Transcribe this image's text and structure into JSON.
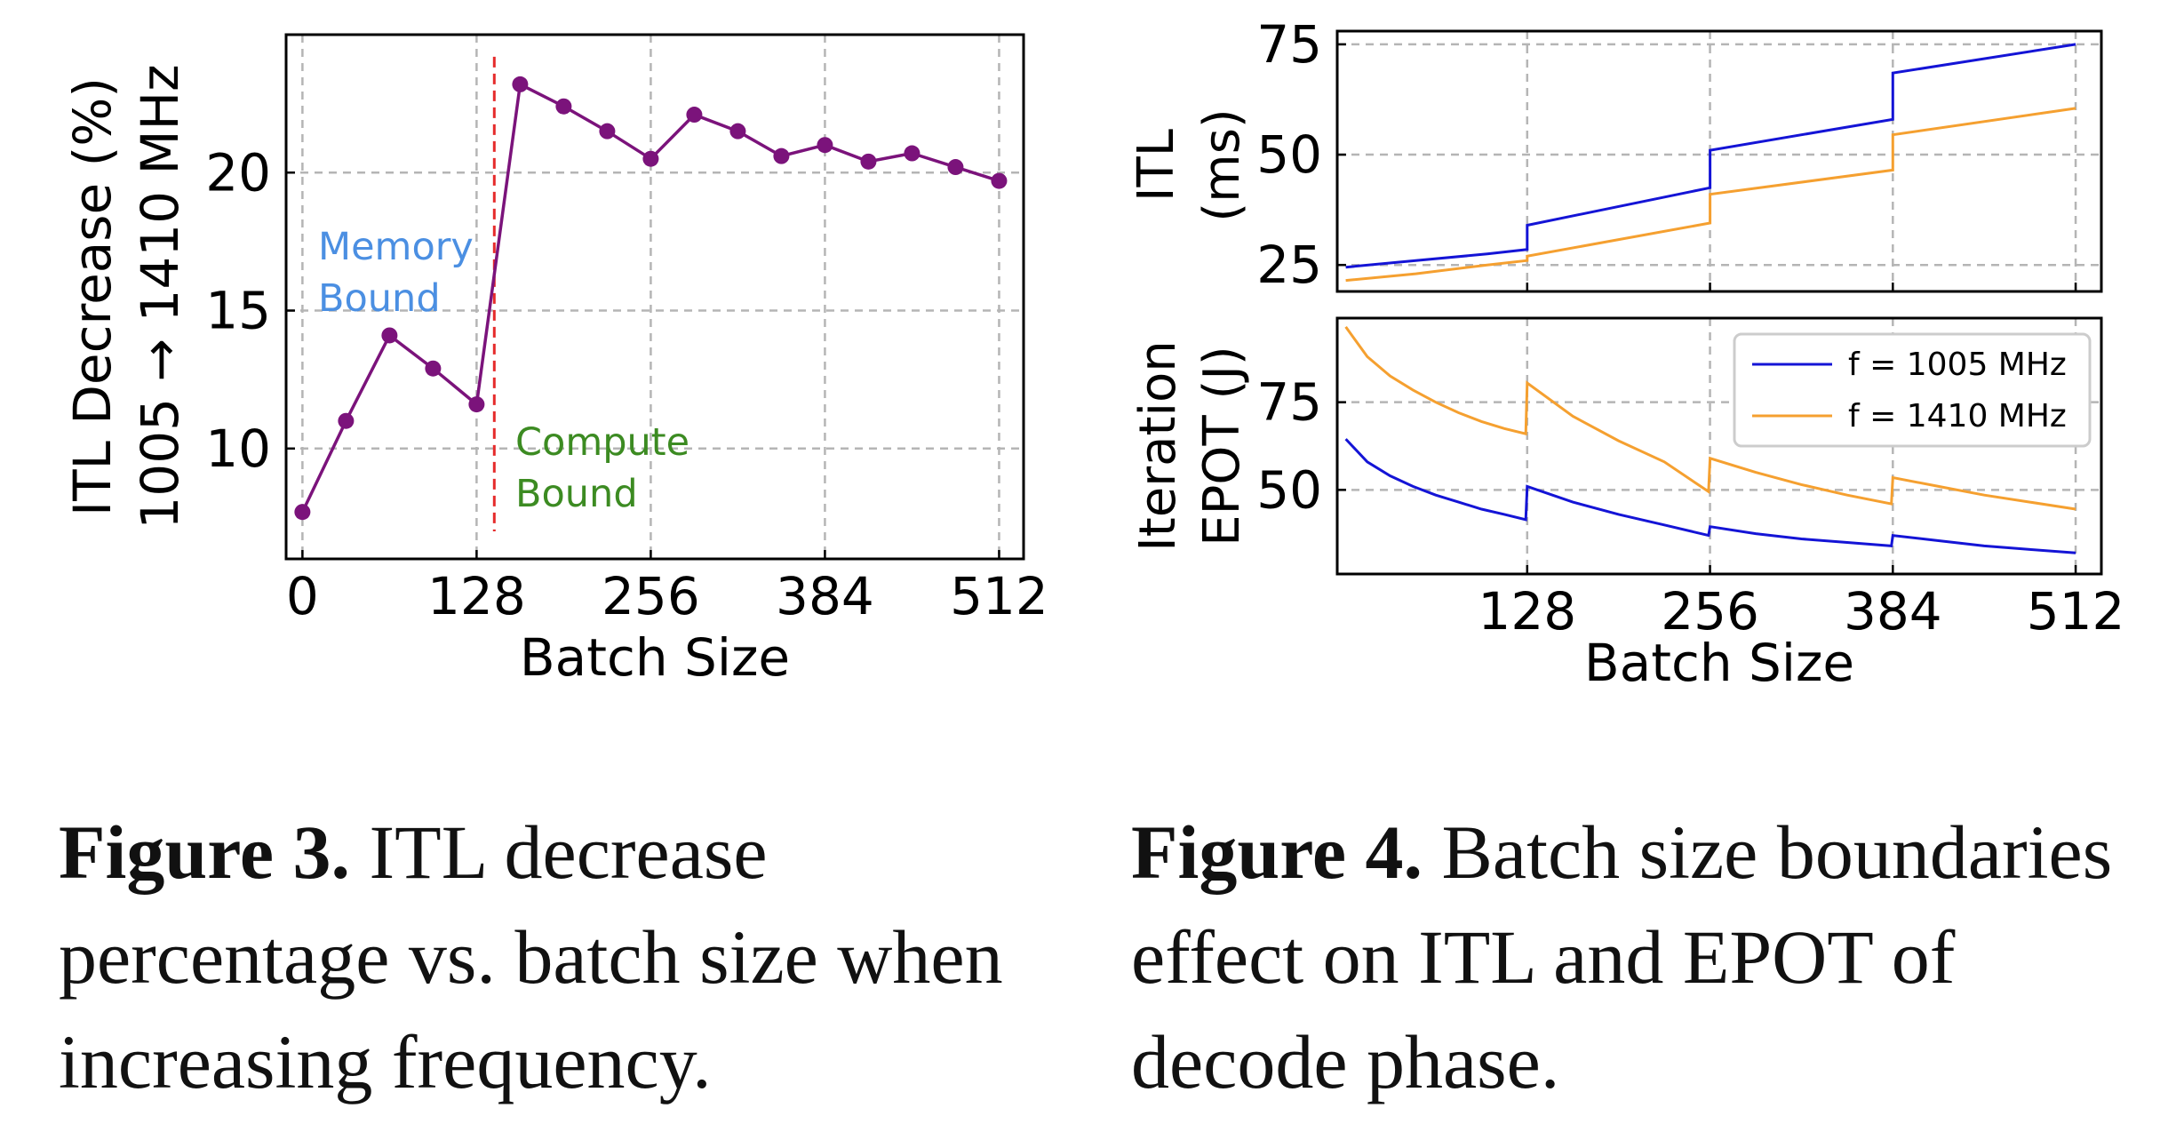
{
  "colors": {
    "purple": "#7b137b",
    "divider": "#e52b2b",
    "memory": "#4b8fe2",
    "compute": "#3c8b22",
    "blue": "#1414d6",
    "orange": "#f5a030",
    "grid": "#b5b5b5"
  },
  "fig3": {
    "caption_label": "Figure 3.",
    "caption_text": "ITL decrease percentage vs. batch size when increasing frequency.",
    "chart_data": {
      "type": "line",
      "xlabel": "Batch Size",
      "ylabel_line1": "ITL Decrease (%)",
      "ylabel_line2": "1005 → 1410 MHz",
      "xlim": [
        -12,
        530
      ],
      "ylim": [
        6,
        25
      ],
      "xticks": [
        0,
        128,
        256,
        384,
        512
      ],
      "yticks": [
        10,
        15,
        20
      ],
      "x": [
        0,
        32,
        64,
        96,
        128,
        160,
        192,
        224,
        256,
        288,
        320,
        352,
        384,
        416,
        448,
        480,
        512
      ],
      "y": [
        7.7,
        11.0,
        14.1,
        12.9,
        11.6,
        23.2,
        22.4,
        21.5,
        20.5,
        22.1,
        21.5,
        20.6,
        21.0,
        20.4,
        20.7,
        20.2,
        19.7
      ],
      "boundary_x": 141,
      "region_left_line1": "Memory",
      "region_left_line2": "Bound",
      "region_right_line1": "Compute",
      "region_right_line2": "Bound"
    }
  },
  "fig4": {
    "caption_label": "Figure 4.",
    "caption_text": "Batch size boundaries effect on ITL and EPOT of decode phase.",
    "chart_data": {
      "type": "line",
      "xlabel": "Batch Size",
      "xlim": [
        -5,
        530
      ],
      "xticks": [
        128,
        256,
        384,
        512
      ],
      "legend": [
        "f = 1005 MHz",
        "f = 1410 MHz"
      ],
      "legend_position": "top-right",
      "itl": {
        "ylabel_line1": "ITL",
        "ylabel_line2": "(ms)",
        "ylim": [
          19,
          78
        ],
        "yticks": [
          25,
          50,
          75
        ],
        "series": [
          {
            "name": "f = 1005 MHz",
            "x": [
              1,
              50,
              100,
              128,
              128,
              256,
              256,
              384,
              384,
              512
            ],
            "y": [
              24.5,
              26.0,
              27.5,
              28.5,
              34.0,
              42.5,
              51.0,
              58.0,
              68.5,
              75.0
            ]
          },
          {
            "name": "f = 1410 MHz",
            "x": [
              1,
              50,
              100,
              128,
              128,
              256,
              256,
              384,
              384,
              512
            ],
            "y": [
              21.5,
              23.0,
              25.0,
              26.0,
              27.0,
              34.5,
              41.0,
              46.5,
              54.5,
              60.5
            ]
          }
        ]
      },
      "epot": {
        "ylabel_line1": "Iteration",
        "ylabel_line2": "EPOT (J)",
        "ylim": [
          26,
          99
        ],
        "yticks": [
          50,
          75
        ],
        "series": [
          {
            "name": "f = 1005 MHz",
            "x": [
              1,
              16,
              32,
              48,
              64,
              80,
              96,
              112,
              127,
              128,
              160,
              192,
              224,
              255,
              256,
              288,
              320,
              352,
              383,
              384,
              416,
              448,
              480,
              512
            ],
            "y": [
              64.5,
              58.0,
              54.0,
              51.0,
              48.5,
              46.5,
              44.5,
              43.0,
              41.5,
              51.0,
              46.5,
              43.0,
              40.0,
              37.0,
              39.5,
              37.5,
              36.0,
              35.0,
              34.0,
              37.0,
              35.5,
              34.0,
              33.0,
              32.0
            ]
          },
          {
            "name": "f = 1410 MHz",
            "x": [
              1,
              16,
              32,
              48,
              64,
              80,
              96,
              112,
              127,
              128,
              160,
              192,
              224,
              255,
              256,
              288,
              320,
              352,
              383,
              384,
              416,
              448,
              480,
              512
            ],
            "y": [
              96.5,
              88.0,
              82.5,
              78.5,
              75.0,
              72.0,
              69.5,
              67.5,
              66.0,
              80.5,
              71.0,
              64.0,
              58.0,
              49.5,
              59.0,
              55.0,
              51.5,
              48.5,
              46.0,
              53.5,
              51.0,
              48.5,
              46.5,
              44.5
            ]
          }
        ]
      }
    }
  }
}
